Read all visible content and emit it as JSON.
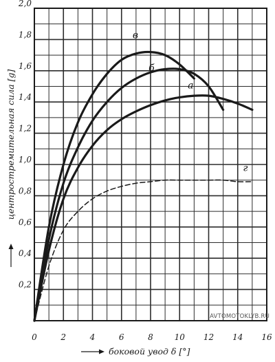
{
  "chart_data": {
    "type": "line",
    "title": "",
    "xlabel": "боковой увод δ [°]",
    "ylabel": "центростремительная сила [g]",
    "x_ticks": [
      "0",
      "2",
      "4",
      "6",
      "8",
      "10",
      "12",
      "14",
      "16"
    ],
    "y_ticks": [
      "0,2",
      "0,4",
      "0,6",
      "0,8",
      "1,0",
      "1,2",
      "1,4",
      "1,6",
      "1,8",
      "2,0"
    ],
    "xlim": [
      0,
      16
    ],
    "ylim": [
      0,
      2.0
    ],
    "grid": true,
    "series": [
      {
        "name": "в",
        "style": "solid",
        "x": [
          0,
          1,
          2,
          3,
          4,
          5,
          6,
          7,
          8,
          9,
          10,
          11
        ],
        "y": [
          0,
          0.6,
          1.0,
          1.27,
          1.45,
          1.58,
          1.67,
          1.71,
          1.72,
          1.7,
          1.64,
          1.55
        ]
      },
      {
        "name": "б",
        "style": "solid",
        "x": [
          0,
          1,
          2,
          3,
          4,
          5,
          6,
          7,
          8,
          9,
          10,
          11,
          12,
          13
        ],
        "y": [
          0,
          0.52,
          0.88,
          1.11,
          1.28,
          1.4,
          1.49,
          1.55,
          1.59,
          1.61,
          1.61,
          1.58,
          1.5,
          1.35
        ]
      },
      {
        "name": "а",
        "style": "solid",
        "x": [
          0,
          1,
          2,
          3,
          4,
          5,
          6,
          7,
          8,
          9,
          10,
          11,
          12,
          13,
          14,
          15
        ],
        "y": [
          0,
          0.45,
          0.78,
          0.98,
          1.12,
          1.22,
          1.29,
          1.34,
          1.38,
          1.41,
          1.43,
          1.44,
          1.44,
          1.42,
          1.39,
          1.35
        ]
      },
      {
        "name": "г",
        "style": "dashed",
        "x": [
          0,
          1,
          2,
          3,
          4,
          5,
          6,
          7,
          8,
          9,
          10,
          11,
          12,
          13,
          14,
          15
        ],
        "y": [
          0,
          0.35,
          0.58,
          0.7,
          0.78,
          0.83,
          0.86,
          0.88,
          0.89,
          0.9,
          0.9,
          0.9,
          0.9,
          0.9,
          0.89,
          0.89
        ]
      }
    ],
    "watermark": "AVTOMOTOKLYB.RU",
    "colors": {
      "ink": "#1a1a1a",
      "grid": "#2b2b2b",
      "background": "#ffffff"
    }
  }
}
